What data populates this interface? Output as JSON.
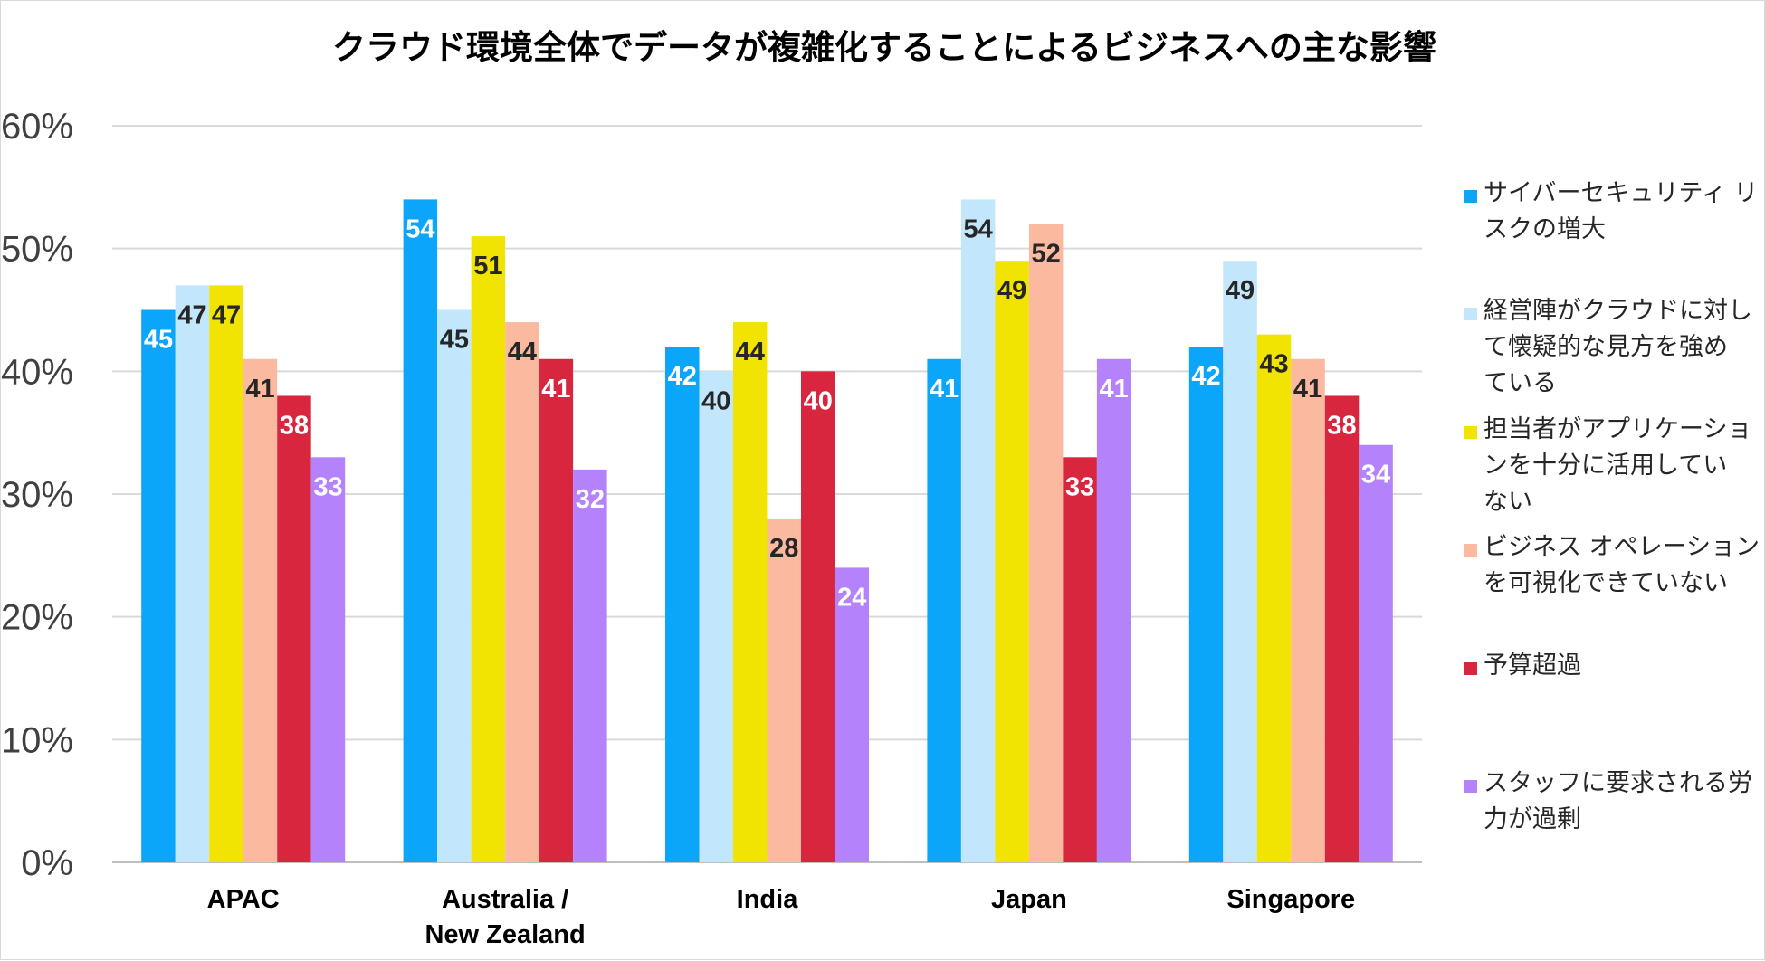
{
  "chart_data": {
    "type": "bar",
    "title": "クラウド環境全体でデータが複雑化することによるビジネスへの主な影響",
    "categories": [
      [
        "APAC"
      ],
      [
        "Australia /",
        "New Zealand"
      ],
      [
        "India"
      ],
      [
        "Japan"
      ],
      [
        "Singapore"
      ]
    ],
    "ylim": [
      0,
      60
    ],
    "yticks": [
      0,
      10,
      20,
      30,
      40,
      50,
      60
    ],
    "ytick_labels": [
      "0%",
      "10%",
      "20%",
      "30%",
      "40%",
      "50%",
      "60%"
    ],
    "grid": true,
    "legend_position": "right",
    "series": [
      {
        "name": [
          "サイバーセキュリティ リ",
          "スクの増大"
        ],
        "color": "#0ba5fa",
        "label_color": "#ffffff",
        "values": [
          45,
          54,
          42,
          41,
          42
        ]
      },
      {
        "name": [
          "経営陣がクラウドに対し",
          "て懐疑的な見方を強め",
          "ている"
        ],
        "color": "#c2e6fb",
        "label_color": "#262626",
        "values": [
          47,
          45,
          40,
          54,
          49
        ]
      },
      {
        "name": [
          "担当者がアプリケーショ",
          "ンを十分に活用してい",
          "ない"
        ],
        "color": "#f1e403",
        "label_color": "#262626",
        "values": [
          47,
          51,
          44,
          49,
          43
        ]
      },
      {
        "name": [
          "ビジネス オペレーション",
          "を可視化できていない"
        ],
        "color": "#fbb9a0",
        "label_color": "#262626",
        "values": [
          41,
          44,
          28,
          52,
          41
        ]
      },
      {
        "name": [
          "予算超過"
        ],
        "color": "#d8263f",
        "label_color": "#ffffff",
        "values": [
          38,
          41,
          40,
          33,
          38
        ]
      },
      {
        "name": [
          "スタッフに要求される労",
          "力が過剰"
        ],
        "color": "#b482fa",
        "label_color": "#ffffff",
        "values": [
          33,
          32,
          24,
          41,
          34
        ]
      }
    ]
  }
}
